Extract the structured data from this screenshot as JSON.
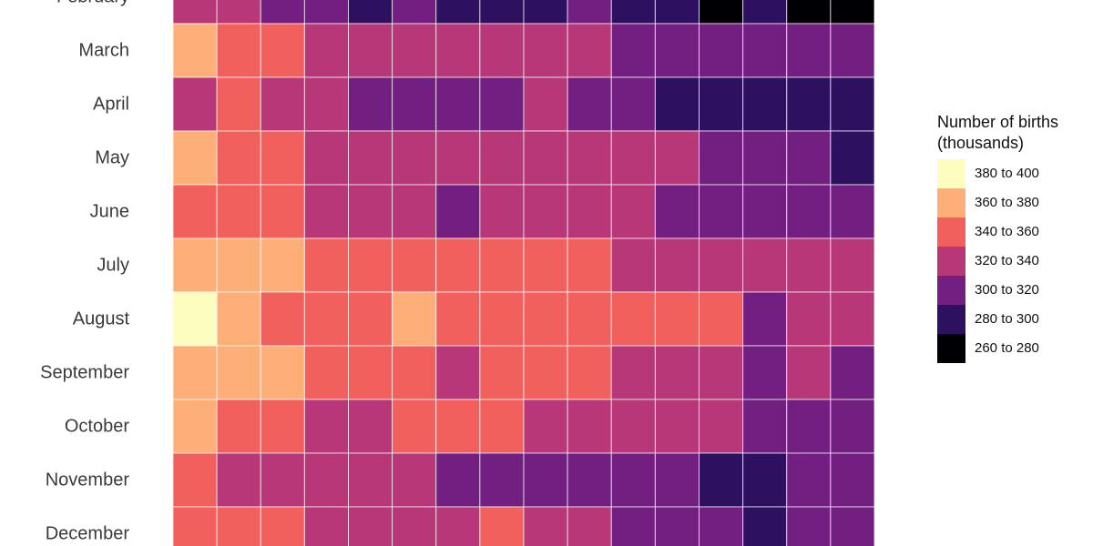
{
  "chart_data": {
    "type": "heatmap",
    "title": "",
    "xlabel": "",
    "ylabel": "",
    "rows": [
      "February",
      "March",
      "April",
      "May",
      "June",
      "July",
      "August",
      "September",
      "October",
      "November",
      "December"
    ],
    "column_count": 16,
    "legend": {
      "title_line1": "Number of births",
      "title_line2": "(thousands)",
      "placement": "right",
      "bins": [
        {
          "label": "380 to 400",
          "color": "#FCFDBF"
        },
        {
          "label": "360 to 380",
          "color": "#FEAF77"
        },
        {
          "label": "340 to 360",
          "color": "#F1605D"
        },
        {
          "label": "320 to 340",
          "color": "#B73779"
        },
        {
          "label": "300 to 320",
          "color": "#721F81"
        },
        {
          "label": "280 to 300",
          "color": "#2D1160"
        },
        {
          "label": "260 to 280",
          "color": "#000004"
        }
      ]
    },
    "values": [
      [
        "320 to 340",
        "320 to 340",
        "300 to 320",
        "300 to 320",
        "280 to 300",
        "300 to 320",
        "280 to 300",
        "280 to 300",
        "280 to 300",
        "300 to 320",
        "280 to 300",
        "280 to 300",
        "260 to 280",
        "280 to 300",
        "260 to 280",
        "260 to 280"
      ],
      [
        "360 to 380",
        "340 to 360",
        "340 to 360",
        "320 to 340",
        "320 to 340",
        "320 to 340",
        "320 to 340",
        "320 to 340",
        "320 to 340",
        "320 to 340",
        "300 to 320",
        "300 to 320",
        "300 to 320",
        "300 to 320",
        "300 to 320",
        "300 to 320"
      ],
      [
        "320 to 340",
        "340 to 360",
        "320 to 340",
        "320 to 340",
        "300 to 320",
        "300 to 320",
        "300 to 320",
        "300 to 320",
        "320 to 340",
        "300 to 320",
        "300 to 320",
        "280 to 300",
        "280 to 300",
        "280 to 300",
        "280 to 300",
        "280 to 300"
      ],
      [
        "360 to 380",
        "340 to 360",
        "340 to 360",
        "320 to 340",
        "320 to 340",
        "320 to 340",
        "320 to 340",
        "320 to 340",
        "320 to 340",
        "320 to 340",
        "320 to 340",
        "320 to 340",
        "300 to 320",
        "300 to 320",
        "300 to 320",
        "280 to 300"
      ],
      [
        "340 to 360",
        "340 to 360",
        "340 to 360",
        "320 to 340",
        "320 to 340",
        "320 to 340",
        "300 to 320",
        "320 to 340",
        "320 to 340",
        "320 to 340",
        "320 to 340",
        "300 to 320",
        "300 to 320",
        "300 to 320",
        "300 to 320",
        "300 to 320"
      ],
      [
        "360 to 380",
        "360 to 380",
        "360 to 380",
        "340 to 360",
        "340 to 360",
        "340 to 360",
        "340 to 360",
        "340 to 360",
        "340 to 360",
        "340 to 360",
        "320 to 340",
        "320 to 340",
        "320 to 340",
        "320 to 340",
        "320 to 340",
        "320 to 340"
      ],
      [
        "380 to 400",
        "360 to 380",
        "340 to 360",
        "340 to 360",
        "340 to 360",
        "360 to 380",
        "340 to 360",
        "340 to 360",
        "340 to 360",
        "340 to 360",
        "340 to 360",
        "340 to 360",
        "340 to 360",
        "300 to 320",
        "320 to 340",
        "320 to 340"
      ],
      [
        "360 to 380",
        "360 to 380",
        "360 to 380",
        "340 to 360",
        "340 to 360",
        "340 to 360",
        "320 to 340",
        "340 to 360",
        "340 to 360",
        "340 to 360",
        "320 to 340",
        "320 to 340",
        "320 to 340",
        "300 to 320",
        "320 to 340",
        "300 to 320"
      ],
      [
        "360 to 380",
        "340 to 360",
        "340 to 360",
        "320 to 340",
        "320 to 340",
        "340 to 360",
        "340 to 360",
        "340 to 360",
        "320 to 340",
        "320 to 340",
        "320 to 340",
        "320 to 340",
        "320 to 340",
        "300 to 320",
        "300 to 320",
        "300 to 320"
      ],
      [
        "340 to 360",
        "320 to 340",
        "320 to 340",
        "320 to 340",
        "320 to 340",
        "320 to 340",
        "300 to 320",
        "300 to 320",
        "300 to 320",
        "300 to 320",
        "300 to 320",
        "300 to 320",
        "280 to 300",
        "280 to 300",
        "300 to 320",
        "300 to 320"
      ],
      [
        "340 to 360",
        "340 to 360",
        "340 to 360",
        "320 to 340",
        "320 to 340",
        "320 to 340",
        "320 to 340",
        "340 to 360",
        "320 to 340",
        "320 to 340",
        "300 to 320",
        "300 to 320",
        "300 to 320",
        "280 to 300",
        "300 to 320",
        "300 to 320"
      ]
    ]
  }
}
